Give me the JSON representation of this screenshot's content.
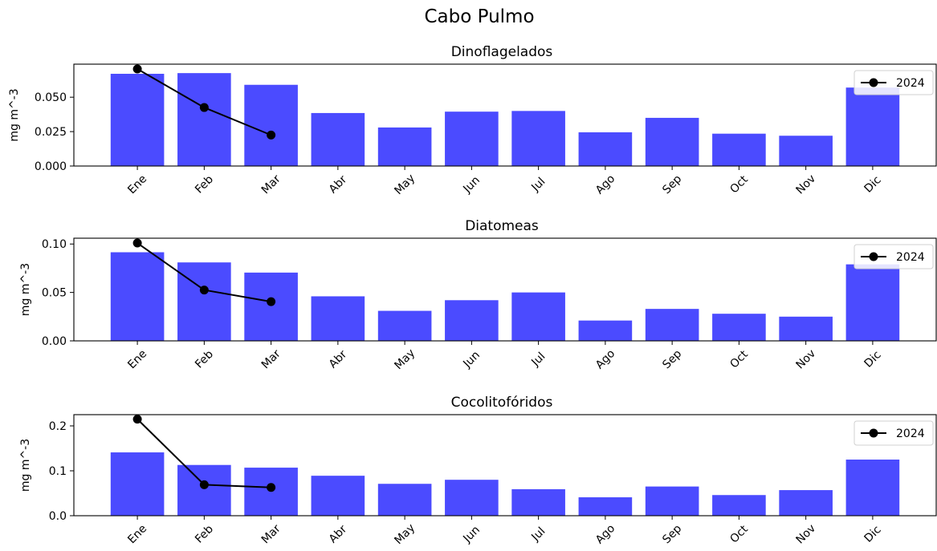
{
  "chart_data": {
    "type": "bar",
    "title": "Cabo Pulmo",
    "colors": {
      "bar": "#4b4bff",
      "line": "#000000"
    },
    "categories": [
      "Ene",
      "Feb",
      "Mar",
      "Abr",
      "May",
      "Jun",
      "Jul",
      "Ago",
      "Sep",
      "Oct",
      "Nov",
      "Dic"
    ],
    "legend_label": "2024",
    "legend_position": "upper-right",
    "grid": false,
    "panels": [
      {
        "title": "Dinoflagelados",
        "ylabel": "mg m^-3",
        "ylim": [
          0,
          0.074
        ],
        "yticks": [
          0.0,
          0.025,
          0.05
        ],
        "ytick_labels": [
          "0.000",
          "0.025",
          "0.050"
        ],
        "bar_values": [
          0.067,
          0.0675,
          0.059,
          0.0385,
          0.028,
          0.0395,
          0.04,
          0.0245,
          0.035,
          0.0235,
          0.022,
          0.057
        ],
        "line_values": [
          0.0705,
          0.0425,
          0.0225
        ]
      },
      {
        "title": "Diatomeas",
        "ylabel": "mg m^-3",
        "ylim": [
          0,
          0.106
        ],
        "yticks": [
          0.0,
          0.05,
          0.1
        ],
        "ytick_labels": [
          "0.00",
          "0.05",
          "0.10"
        ],
        "bar_values": [
          0.0915,
          0.081,
          0.0705,
          0.046,
          0.031,
          0.042,
          0.05,
          0.021,
          0.033,
          0.028,
          0.025,
          0.079
        ],
        "line_values": [
          0.101,
          0.0525,
          0.0405
        ]
      },
      {
        "title": "Cocolitofóridos",
        "ylabel": "mg m^-3",
        "ylim": [
          0,
          0.225
        ],
        "yticks": [
          0.0,
          0.1,
          0.2
        ],
        "ytick_labels": [
          "0.0",
          "0.1",
          "0.2"
        ],
        "bar_values": [
          0.141,
          0.113,
          0.107,
          0.089,
          0.071,
          0.08,
          0.059,
          0.041,
          0.065,
          0.046,
          0.057,
          0.125
        ],
        "line_values": [
          0.215,
          0.069,
          0.063
        ]
      }
    ]
  }
}
